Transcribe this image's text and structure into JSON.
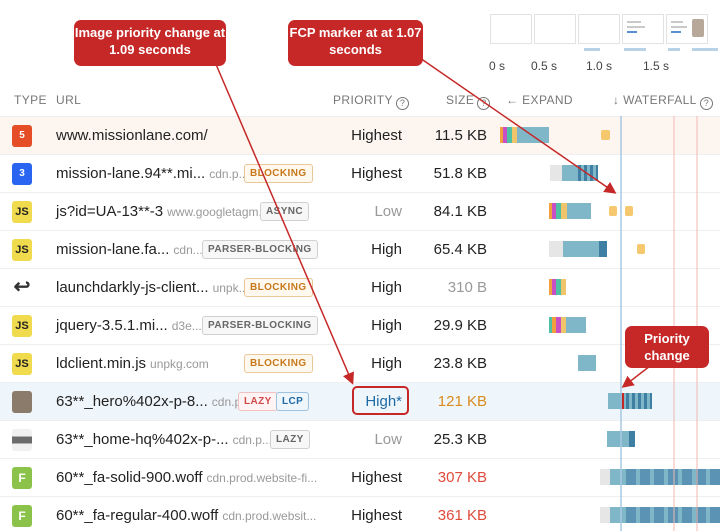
{
  "filmstrip": {
    "time_labels": [
      "0 s",
      "0.5 s",
      "1.0 s",
      "1.5 s"
    ]
  },
  "header": {
    "type": "TYPE",
    "url": "URL",
    "priority": "PRIORITY",
    "size": "SIZE",
    "expand": "EXPAND",
    "waterfall": "WATERFALL",
    "help_glyph": "?",
    "expand_arrow": "←",
    "waterfall_arrow": "↓"
  },
  "rows": [
    {
      "type": "html",
      "icon_text": "5",
      "url": "www.missionlane.com/",
      "domain": "",
      "badges": [],
      "priority": "Highest",
      "size": "11.5 KB"
    },
    {
      "type": "css",
      "icon_text": "3",
      "url": "mission-lane.94**.mi...",
      "domain": "cdn.p...",
      "badges": [
        "BLOCKING"
      ],
      "priority": "Highest",
      "size": "51.8 KB"
    },
    {
      "type": "js",
      "icon_text": "JS",
      "url": "js?id=UA-13**-3",
      "domain": "www.googletagm...",
      "badges": [
        "ASYNC"
      ],
      "priority": "Low",
      "size": "84.1 KB"
    },
    {
      "type": "js",
      "icon_text": "JS",
      "url": "mission-lane.fa...",
      "domain": "cdn...",
      "badges": [
        "PARSER-BLOCKING"
      ],
      "priority": "High",
      "size": "65.4 KB"
    },
    {
      "type": "redirect",
      "icon_text": "↩",
      "url": "launchdarkly-js-client...",
      "domain": "unpk...",
      "badges": [
        "BLOCKING"
      ],
      "priority": "High",
      "size": "310 B"
    },
    {
      "type": "js",
      "icon_text": "JS",
      "url": "jquery-3.5.1.mi...",
      "domain": "d3e...",
      "badges": [
        "PARSER-BLOCKING"
      ],
      "priority": "High",
      "size": "29.9 KB"
    },
    {
      "type": "js",
      "icon_text": "JS",
      "url": "ldclient.min.js",
      "domain": "unpkg.com",
      "badges": [
        "BLOCKING"
      ],
      "priority": "High",
      "size": "23.8 KB"
    },
    {
      "type": "image",
      "icon_text": "",
      "url": "63**_hero%402x-p-8...",
      "domain": "cdn.p...",
      "badges": [
        "LAZY",
        "LCP"
      ],
      "priority": "High*",
      "size": "121 KB"
    },
    {
      "type": "image",
      "icon_text": "",
      "url": "63**_home-hq%402x-p-...",
      "domain": "cdn.p...",
      "badges": [
        "LAZY"
      ],
      "priority": "Low",
      "size": "25.3 KB"
    },
    {
      "type": "font",
      "icon_text": "F",
      "url": "60**_fa-solid-900.woff",
      "domain": "cdn.prod.website-fi...",
      "badges": [],
      "priority": "Highest",
      "size": "307 KB"
    },
    {
      "type": "font",
      "icon_text": "F",
      "url": "60**_fa-regular-400.woff",
      "domain": "cdn.prod.websit...",
      "badges": [],
      "priority": "Highest",
      "size": "361 KB"
    }
  ],
  "callouts": {
    "image_priority": "Image priority change at 1.09 seconds",
    "fcp": "FCP marker at at 1.07 seconds",
    "priority_change": "Priority change"
  },
  "colors": {
    "callout": "#c62828",
    "fcp_line": "#a9c8e3",
    "waterfall_bar": "#7fb7c9",
    "highlight_row": "#eef5fb"
  }
}
